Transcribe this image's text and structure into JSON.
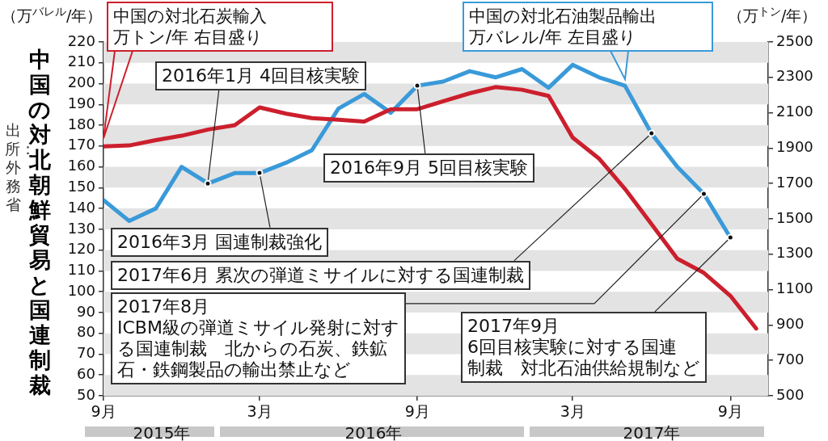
{
  "chart_data": {
    "type": "line",
    "title": "中国の対北朝鮮貿易と国連制裁",
    "ylabel": "（万$^{バレル}$/年）",
    "y2label": "（万$^{トン}$/年）",
    "xlim": [
      "2015-09",
      "2017-10-15"
    ],
    "xticks": [
      {
        "value": "2015-09",
        "label": "9月"
      },
      {
        "value": "2016-03",
        "label": "3月"
      },
      {
        "value": "2016-09",
        "label": "9月"
      },
      {
        "value": "2017-03",
        "label": "3月"
      },
      {
        "value": "2017-09",
        "label": "9月"
      }
    ],
    "ylim": [
      50,
      220
    ],
    "yticks": [
      50,
      60,
      70,
      80,
      90,
      100,
      110,
      120,
      130,
      140,
      150,
      160,
      170,
      180,
      190,
      200,
      210,
      220
    ],
    "y2lim": [
      500,
      2500
    ],
    "y2ticks": [
      500,
      700,
      900,
      1100,
      1300,
      1500,
      1700,
      1900,
      2100,
      2300,
      2500
    ],
    "legend": false,
    "marker": "none",
    "line_style": "solid",
    "bands": [
      {
        "axis": "y",
        "from": 210,
        "to": 220,
        "color": "#e3e3e3"
      },
      {
        "axis": "y",
        "from": 190,
        "to": 200,
        "color": "#e3e3e3"
      },
      {
        "axis": "y",
        "from": 170,
        "to": 180,
        "color": "#e3e3e3"
      },
      {
        "axis": "y",
        "from": 150,
        "to": 160,
        "color": "#e3e3e3"
      },
      {
        "axis": "y",
        "from": 130,
        "to": 140,
        "color": "#e3e3e3"
      },
      {
        "axis": "y",
        "from": 110,
        "to": 120,
        "color": "#e3e3e3"
      },
      {
        "axis": "y",
        "from": 90,
        "to": 100,
        "color": "#e3e3e3"
      },
      {
        "axis": "y",
        "from": 70,
        "to": 80,
        "color": "#e3e3e3"
      },
      {
        "axis": "y",
        "from": 50,
        "to": 60,
        "color": "#e3e3e3"
      }
    ],
    "series": [
      {
        "name": "中国の対北石炭輸入万トン/年 右目盛り",
        "color": "#cc1f2d",
        "axis": "y2",
        "x": [
          "2015-09",
          "2015-10",
          "2015-11",
          "2015-12",
          "2016-01",
          "2016-02",
          "2016-03",
          "2016-04",
          "2016-05",
          "2016-06",
          "2016-07",
          "2016-08",
          "2016-09",
          "2016-10",
          "2016-11",
          "2016-12",
          "2017-01",
          "2017-02",
          "2017-03",
          "2017-04",
          "2017-05",
          "2017-06",
          "2017-07",
          "2017-08",
          "2017-09",
          "2017-10"
        ],
        "values": [
          1910,
          1915,
          1945,
          1970,
          2005,
          2030,
          2130,
          2095,
          2070,
          2060,
          2050,
          2120,
          2120,
          2165,
          2210,
          2245,
          2230,
          2195,
          1960,
          1840,
          1670,
          1470,
          1275,
          1195,
          1065,
          880
        ]
      },
      {
        "name": "中国の対北石油製品輸出万バレル/年 左目盛り",
        "color": "#3a9ad9",
        "axis": "y",
        "x": [
          "2015-09",
          "2015-10",
          "2015-11",
          "2015-12",
          "2016-01",
          "2016-02",
          "2016-03",
          "2016-04",
          "2016-05",
          "2016-06",
          "2016-07",
          "2016-08",
          "2016-09",
          "2016-10",
          "2016-11",
          "2016-12",
          "2017-01",
          "2017-02",
          "2017-03",
          "2017-04",
          "2017-05",
          "2017-06",
          "2017-07",
          "2017-08",
          "2017-09"
        ],
        "values": [
          144,
          134,
          140,
          160,
          152,
          157,
          157,
          162,
          168,
          188,
          195,
          186,
          199,
          201,
          206,
          203,
          207,
          198,
          209,
          203,
          199,
          176,
          160,
          147,
          126
        ]
      }
    ],
    "annotations": [
      {
        "text": "2016年1月 4回目核実験",
        "x": "2016-01",
        "y": 152
      },
      {
        "text": "2016年3月 国連制裁強化",
        "x": "2016-03",
        "y": 157
      },
      {
        "text": "2016年9月 5回目核実験",
        "x": "2016-09",
        "y": 199
      },
      {
        "text": "2017年6月 累次の弾道ミサイルに対する国連制裁",
        "x": "2017-06",
        "y": 176
      },
      {
        "text": "2017年8月ICBM級の弾道ミサイル発射に対する国連制裁　北からの石炭、鉄鉱石・鉄鋼製品の輸出禁止など",
        "x": "2017-08",
        "y": 147
      },
      {
        "text": "2017年9月6回目核実験に対する国連制裁　対北石油供給規制など",
        "x": "2017-09",
        "y": 126
      },
      "2015年",
      "2016年",
      "2017年",
      "出所：外務省"
    ]
  }
}
